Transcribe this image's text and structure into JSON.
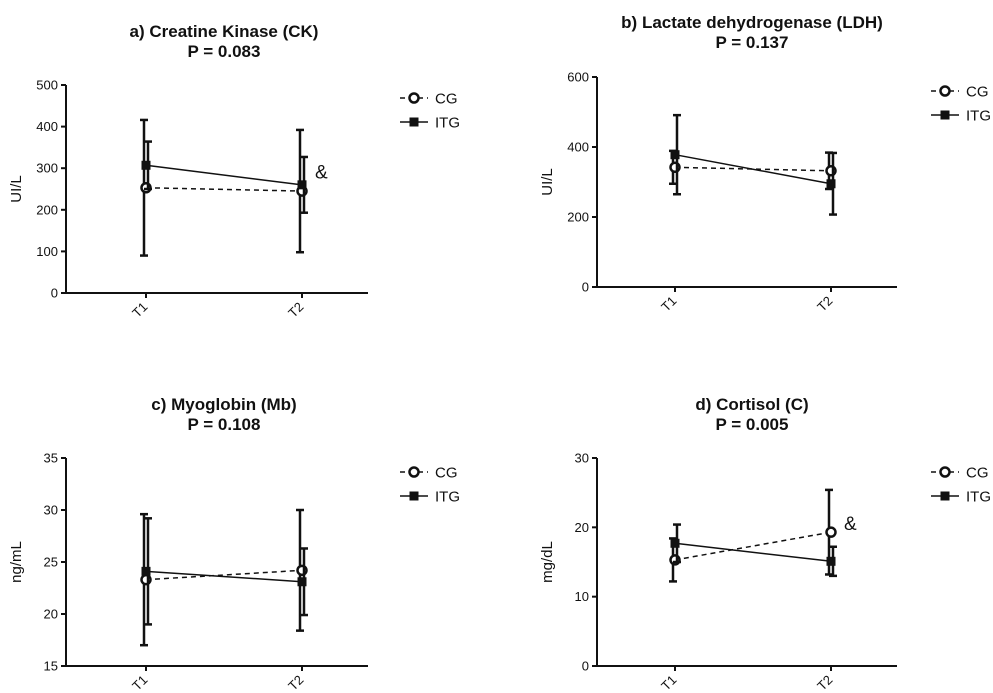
{
  "chart_data": [
    {
      "type": "line",
      "title": "a) Creatine Kinase (CK)",
      "subtitle": "P = 0.083",
      "xlabel": "",
      "ylabel": "UI/L",
      "categories": [
        "T1",
        "T2"
      ],
      "ylim": [
        0,
        500
      ],
      "yticks": [
        "0",
        "100",
        "200",
        "300",
        "400",
        "500"
      ],
      "grid": false,
      "legend": "right",
      "series": [
        {
          "name": "CG",
          "style": "dashed",
          "marker": "open-circle",
          "values": [
            253,
            245
          ],
          "errors": [
            163,
            147
          ]
        },
        {
          "name": "ITG",
          "style": "solid",
          "marker": "filled-square",
          "values": [
            307,
            260
          ],
          "errors": [
            57,
            67
          ]
        }
      ],
      "annotations": [
        {
          "text": "&",
          "category": "T2",
          "value": 290
        }
      ]
    },
    {
      "type": "line",
      "title": "b) Lactate dehydrogenase (LDH)",
      "subtitle": "P = 0.137",
      "xlabel": "",
      "ylabel": "UI/L",
      "categories": [
        "T1",
        "T2"
      ],
      "ylim": [
        0,
        600
      ],
      "yticks": [
        "0",
        "200",
        "400",
        "600"
      ],
      "grid": false,
      "legend": "right",
      "series": [
        {
          "name": "CG",
          "style": "dashed",
          "marker": "open-circle",
          "values": [
            342,
            332
          ],
          "errors": [
            47,
            52
          ]
        },
        {
          "name": "ITG",
          "style": "solid",
          "marker": "filled-square",
          "values": [
            378,
            295
          ],
          "errors": [
            113,
            88
          ]
        }
      ],
      "annotations": []
    },
    {
      "type": "line",
      "title": "c) Myoglobin (Mb)",
      "subtitle": "P = 0.108",
      "xlabel": "",
      "ylabel": "ng/mL",
      "categories": [
        "T1",
        "T2"
      ],
      "ylim": [
        15,
        35
      ],
      "yticks": [
        "15",
        "20",
        "25",
        "30",
        "35"
      ],
      "grid": false,
      "legend": "right",
      "series": [
        {
          "name": "CG",
          "style": "dashed",
          "marker": "open-circle",
          "values": [
            23.3,
            24.2
          ],
          "errors": [
            6.3,
            5.8
          ]
        },
        {
          "name": "ITG",
          "style": "solid",
          "marker": "filled-square",
          "values": [
            24.1,
            23.1
          ],
          "errors": [
            5.1,
            3.2
          ]
        }
      ],
      "annotations": []
    },
    {
      "type": "line",
      "title": "d) Cortisol (C)",
      "subtitle": "P = 0.005",
      "xlabel": "",
      "ylabel": "mg/dL",
      "categories": [
        "T1",
        "T2"
      ],
      "ylim": [
        0,
        30
      ],
      "yticks": [
        "0",
        "10",
        "20",
        "30"
      ],
      "grid": false,
      "legend": "right",
      "series": [
        {
          "name": "CG",
          "style": "dashed",
          "marker": "open-circle",
          "values": [
            15.3,
            19.3
          ],
          "errors": [
            3.1,
            6.1
          ]
        },
        {
          "name": "ITG",
          "style": "solid",
          "marker": "filled-square",
          "values": [
            17.7,
            15.1
          ],
          "errors": [
            2.7,
            2.1
          ]
        }
      ],
      "annotations": [
        {
          "text": "&",
          "category": "T2",
          "value": 20.5
        }
      ]
    }
  ]
}
